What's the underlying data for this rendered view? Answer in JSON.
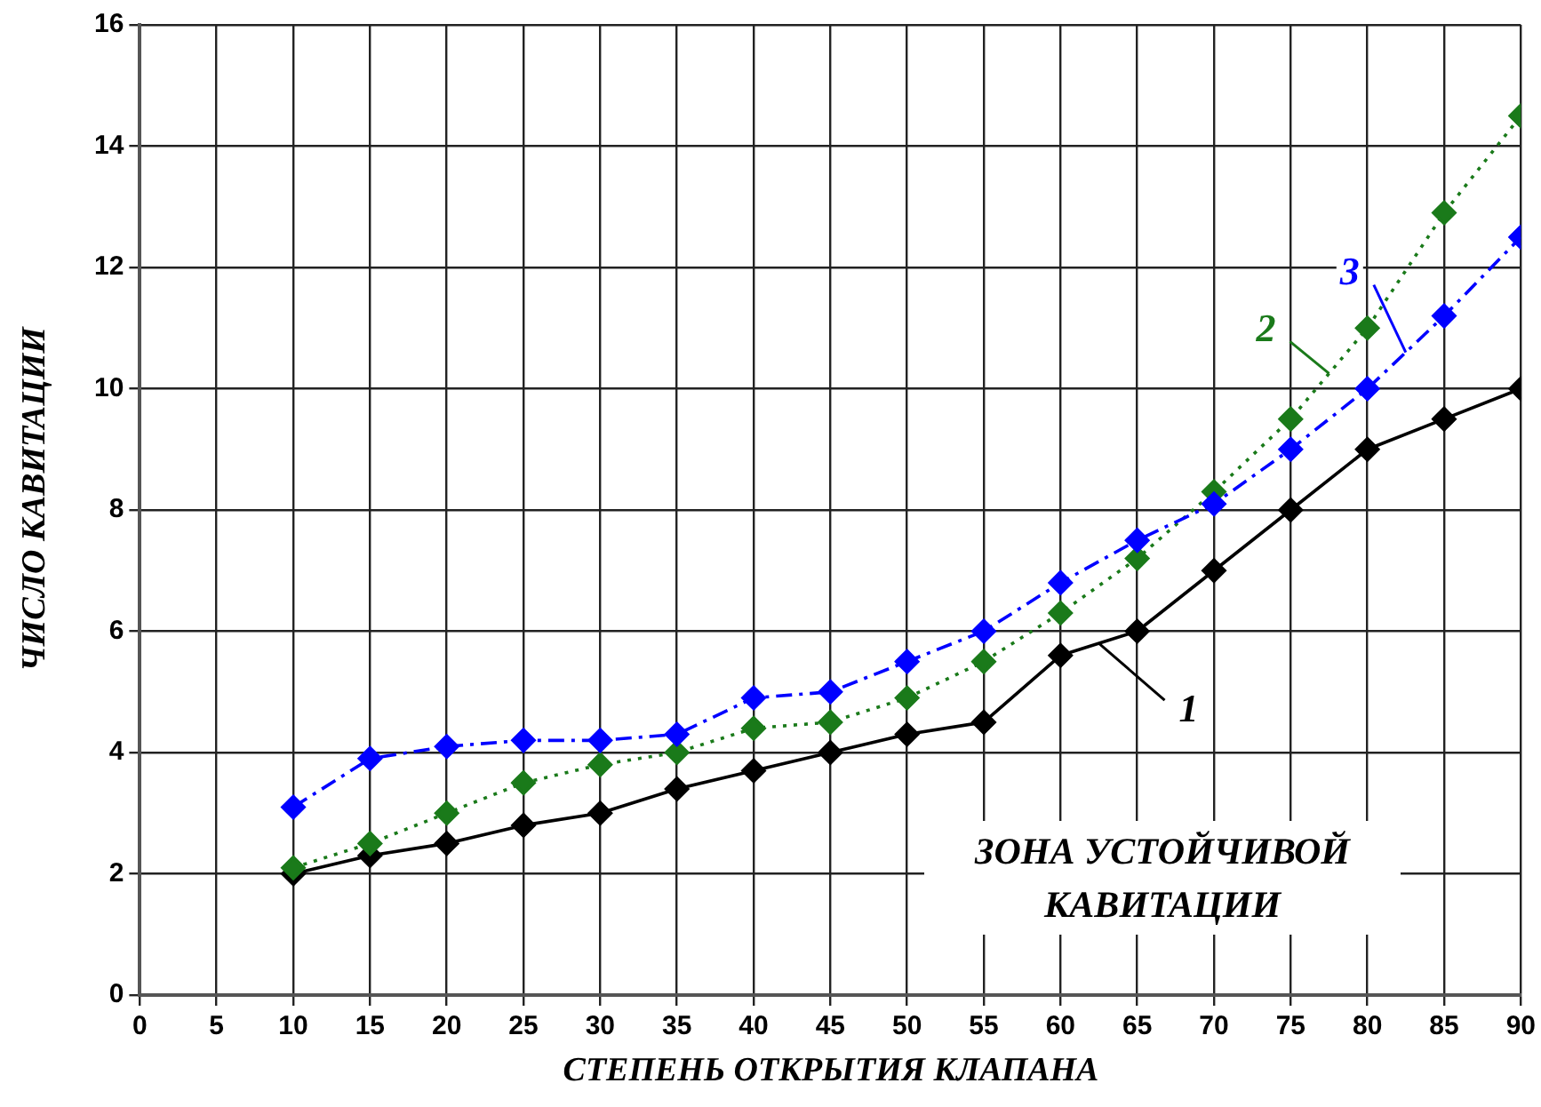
{
  "chart_data": {
    "type": "line",
    "xlabel": "СТЕПЕНЬ ОТКРЫТИЯ КЛАПАНА",
    "ylabel": "ЧИСЛО КАВИТАЦИИ",
    "x": [
      10,
      15,
      20,
      25,
      30,
      35,
      40,
      45,
      50,
      55,
      60,
      65,
      70,
      75,
      80,
      85,
      90
    ],
    "series": [
      {
        "name": "1",
        "color": "#000000",
        "line_style": "solid",
        "values": [
          2.0,
          2.3,
          2.5,
          2.8,
          3.0,
          3.4,
          3.7,
          4.0,
          4.3,
          4.5,
          5.6,
          6.0,
          7.0,
          8.0,
          9.0,
          9.5,
          10.0
        ]
      },
      {
        "name": "2",
        "color": "#1a7a1a",
        "line_style": "dotted",
        "values": [
          2.1,
          2.5,
          3.0,
          3.5,
          3.8,
          4.0,
          4.4,
          4.5,
          4.9,
          5.5,
          6.3,
          7.2,
          8.3,
          9.5,
          11.0,
          12.9,
          14.5
        ]
      },
      {
        "name": "3",
        "color": "#0000ff",
        "line_style": "dashed",
        "values": [
          3.1,
          3.9,
          4.1,
          4.2,
          4.2,
          4.3,
          4.9,
          5.0,
          5.5,
          6.0,
          6.8,
          7.5,
          8.1,
          9.0,
          10.0,
          11.2,
          12.5
        ]
      }
    ],
    "xlim": [
      0,
      90
    ],
    "xticks": [
      0,
      5,
      10,
      15,
      20,
      25,
      30,
      35,
      40,
      45,
      50,
      55,
      60,
      65,
      70,
      75,
      80,
      85,
      90
    ],
    "ylim": [
      0,
      16
    ],
    "yticks": [
      0,
      2,
      4,
      6,
      8,
      10,
      12,
      14,
      16
    ],
    "grid": true,
    "legend": false,
    "marker": "diamond",
    "annotations": [
      "ЗОНА УСТОЙЧИВОЙ КАВИТАЦИИ"
    ]
  }
}
